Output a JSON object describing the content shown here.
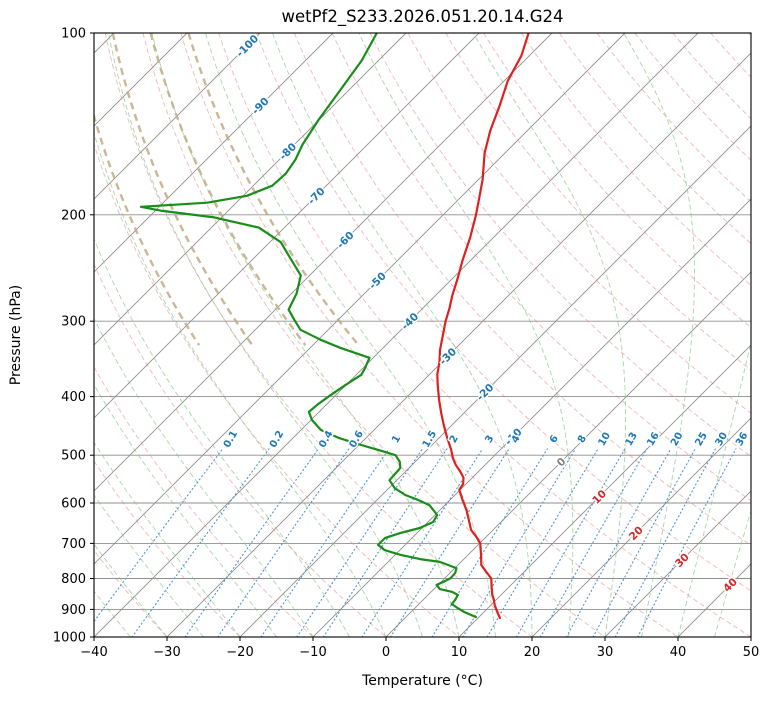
{
  "title": "wetPf2_S233.2026.051.20.14.G24",
  "axes": {
    "x_label": "Temperature (°C)",
    "y_label": "Pressure (hPa)",
    "x_range": [
      -40,
      50
    ],
    "p_range": [
      100,
      1000
    ],
    "x_ticks": [
      -40,
      -30,
      -20,
      -10,
      0,
      10,
      20,
      30,
      40,
      50
    ],
    "x_tick_labels": [
      "−40",
      "−30",
      "−20",
      "−10",
      "0",
      "10",
      "20",
      "30",
      "40",
      "50"
    ],
    "y_ticks": [
      100,
      200,
      300,
      400,
      500,
      600,
      700,
      800,
      900,
      1000
    ],
    "y_tick_labels": [
      "100",
      "200",
      "300",
      "400",
      "500",
      "600",
      "700",
      "800",
      "900",
      "1000"
    ]
  },
  "chart_data": {
    "type": "line",
    "subtype": "skew-t-log-p",
    "skew_deg": 45,
    "grid": "on",
    "colors": {
      "grid": "#8f8f8f",
      "isotherm": "#8f8f8f",
      "dry_adiabat": "#e08080",
      "moist_adiabat": "#84c384",
      "upper_adiabat": "#c2a984",
      "mixing_line": "#4f93c9",
      "label_neg": "#1f77b4",
      "label_zero": "#7f7f7f",
      "label_pos": "#d62728"
    },
    "series": [
      {
        "name": "temperature",
        "color": "#e02020",
        "points": [
          [
            100,
            -63.2
          ],
          [
            109,
            -61.1
          ],
          [
            120,
            -59.5
          ],
          [
            132,
            -57.2
          ],
          [
            145,
            -55.1
          ],
          [
            158,
            -52.8
          ],
          [
            175,
            -49.4
          ],
          [
            188,
            -47.3
          ],
          [
            200,
            -45.5
          ],
          [
            218,
            -43.2
          ],
          [
            238,
            -41.1
          ],
          [
            255,
            -39.3
          ],
          [
            272,
            -37.7
          ],
          [
            286,
            -36.3
          ],
          [
            300,
            -35.1
          ],
          [
            317,
            -33.5
          ],
          [
            335,
            -31.9
          ],
          [
            350,
            -30.4
          ],
          [
            368,
            -28.9
          ],
          [
            386,
            -27.1
          ],
          [
            405,
            -25.2
          ],
          [
            425,
            -23.2
          ],
          [
            446,
            -21.1
          ],
          [
            468,
            -18.9
          ],
          [
            490,
            -16.7
          ],
          [
            505,
            -15.4
          ],
          [
            519,
            -14.0
          ],
          [
            532,
            -12.5
          ],
          [
            545,
            -11.2
          ],
          [
            558,
            -10.4
          ],
          [
            571,
            -10.1
          ],
          [
            593,
            -8.3
          ],
          [
            616,
            -6.4
          ],
          [
            640,
            -4.7
          ],
          [
            665,
            -3.0
          ],
          [
            682,
            -1.4
          ],
          [
            700,
            0.1
          ],
          [
            730,
            1.7
          ],
          [
            760,
            3.2
          ],
          [
            780,
            4.8
          ],
          [
            800,
            6.4
          ],
          [
            826,
            7.6
          ],
          [
            852,
            8.8
          ],
          [
            868,
            9.7
          ],
          [
            885,
            10.5
          ],
          [
            907,
            11.7
          ],
          [
            930,
            13.0
          ]
        ]
      },
      {
        "name": "dewpoint",
        "color": "#1a8c1a",
        "points": [
          [
            100,
            -84.0
          ],
          [
            111,
            -82.3
          ],
          [
            124,
            -81.2
          ],
          [
            139,
            -80.1
          ],
          [
            153,
            -78.9
          ],
          [
            162,
            -77.8
          ],
          [
            171,
            -77.2
          ],
          [
            179,
            -77.4
          ],
          [
            186,
            -79.5
          ],
          [
            191,
            -84.0
          ],
          [
            194,
            -92.5
          ],
          [
            197,
            -89.0
          ],
          [
            202,
            -81.0
          ],
          [
            210,
            -73.5
          ],
          [
            222,
            -68.5
          ],
          [
            236,
            -65.0
          ],
          [
            252,
            -61.2
          ],
          [
            270,
            -59.3
          ],
          [
            287,
            -58.2
          ],
          [
            299,
            -55.9
          ],
          [
            310,
            -53.8
          ],
          [
            322,
            -49.7
          ],
          [
            332,
            -45.9
          ],
          [
            345,
            -40.5
          ],
          [
            359,
            -39.7
          ],
          [
            368,
            -39.3
          ],
          [
            383,
            -40.1
          ],
          [
            397,
            -40.7
          ],
          [
            411,
            -41.2
          ],
          [
            424,
            -41.4
          ],
          [
            437,
            -39.9
          ],
          [
            454,
            -37.3
          ],
          [
            468,
            -33.8
          ],
          [
            481,
            -29.7
          ],
          [
            490,
            -26.7
          ],
          [
            500,
            -23.6
          ],
          [
            513,
            -22.1
          ],
          [
            525,
            -21.2
          ],
          [
            537,
            -21.1
          ],
          [
            550,
            -21.0
          ],
          [
            567,
            -19.2
          ],
          [
            582,
            -16.8
          ],
          [
            593,
            -14.4
          ],
          [
            605,
            -12.1
          ],
          [
            628,
            -9.7
          ],
          [
            645,
            -9.3
          ],
          [
            660,
            -10.3
          ],
          [
            673,
            -12.3
          ],
          [
            686,
            -13.7
          ],
          [
            704,
            -13.7
          ],
          [
            718,
            -12.1
          ],
          [
            731,
            -9.3
          ],
          [
            743,
            -6.0
          ],
          [
            751,
            -2.9
          ],
          [
            769,
            0.2
          ],
          [
            783,
            0.7
          ],
          [
            799,
            0.8
          ],
          [
            811,
            0.3
          ],
          [
            820,
            -0.2
          ],
          [
            833,
            0.8
          ],
          [
            842,
            2.9
          ],
          [
            852,
            4.1
          ],
          [
            869,
            4.4
          ],
          [
            882,
            4.5
          ],
          [
            895,
            5.8
          ],
          [
            909,
            7.3
          ],
          [
            927,
            9.6
          ]
        ]
      }
    ],
    "isotherms": {
      "start": -160,
      "end": 50,
      "step": 10
    },
    "isotherm_labels": [
      {
        "t": -100,
        "p": 105
      },
      {
        "t": -90,
        "p": 132
      },
      {
        "t": -80,
        "p": 157
      },
      {
        "t": -70,
        "p": 186
      },
      {
        "t": -60,
        "p": 220
      },
      {
        "t": -50,
        "p": 257
      },
      {
        "t": -40,
        "p": 300
      },
      {
        "t": -30,
        "p": 343
      },
      {
        "t": -20,
        "p": 393
      },
      {
        "t": -10,
        "p": 466
      },
      {
        "t": 0,
        "p": 513
      },
      {
        "t": 10,
        "p": 586
      },
      {
        "t": 20,
        "p": 673
      },
      {
        "t": 30,
        "p": 746
      },
      {
        "t": 40,
        "p": 820
      }
    ],
    "dry_adiabats": {
      "theta_start": -30,
      "theta_end": 200,
      "step": 10
    },
    "moist_adiabats": {
      "tw_start": -40,
      "tw_end": 45,
      "step": 5
    },
    "upper_adiabats": {
      "thetas": [
        12,
        22,
        32,
        42
      ],
      "max_p": 330
    },
    "mixing_ratio": {
      "values": [
        0.1,
        0.2,
        0.4,
        0.6,
        1,
        1.5,
        2,
        3,
        4,
        6,
        8,
        10,
        13,
        16,
        20,
        25,
        30,
        36
      ],
      "label_pressure": 470,
      "top_pressure": 488
    }
  }
}
